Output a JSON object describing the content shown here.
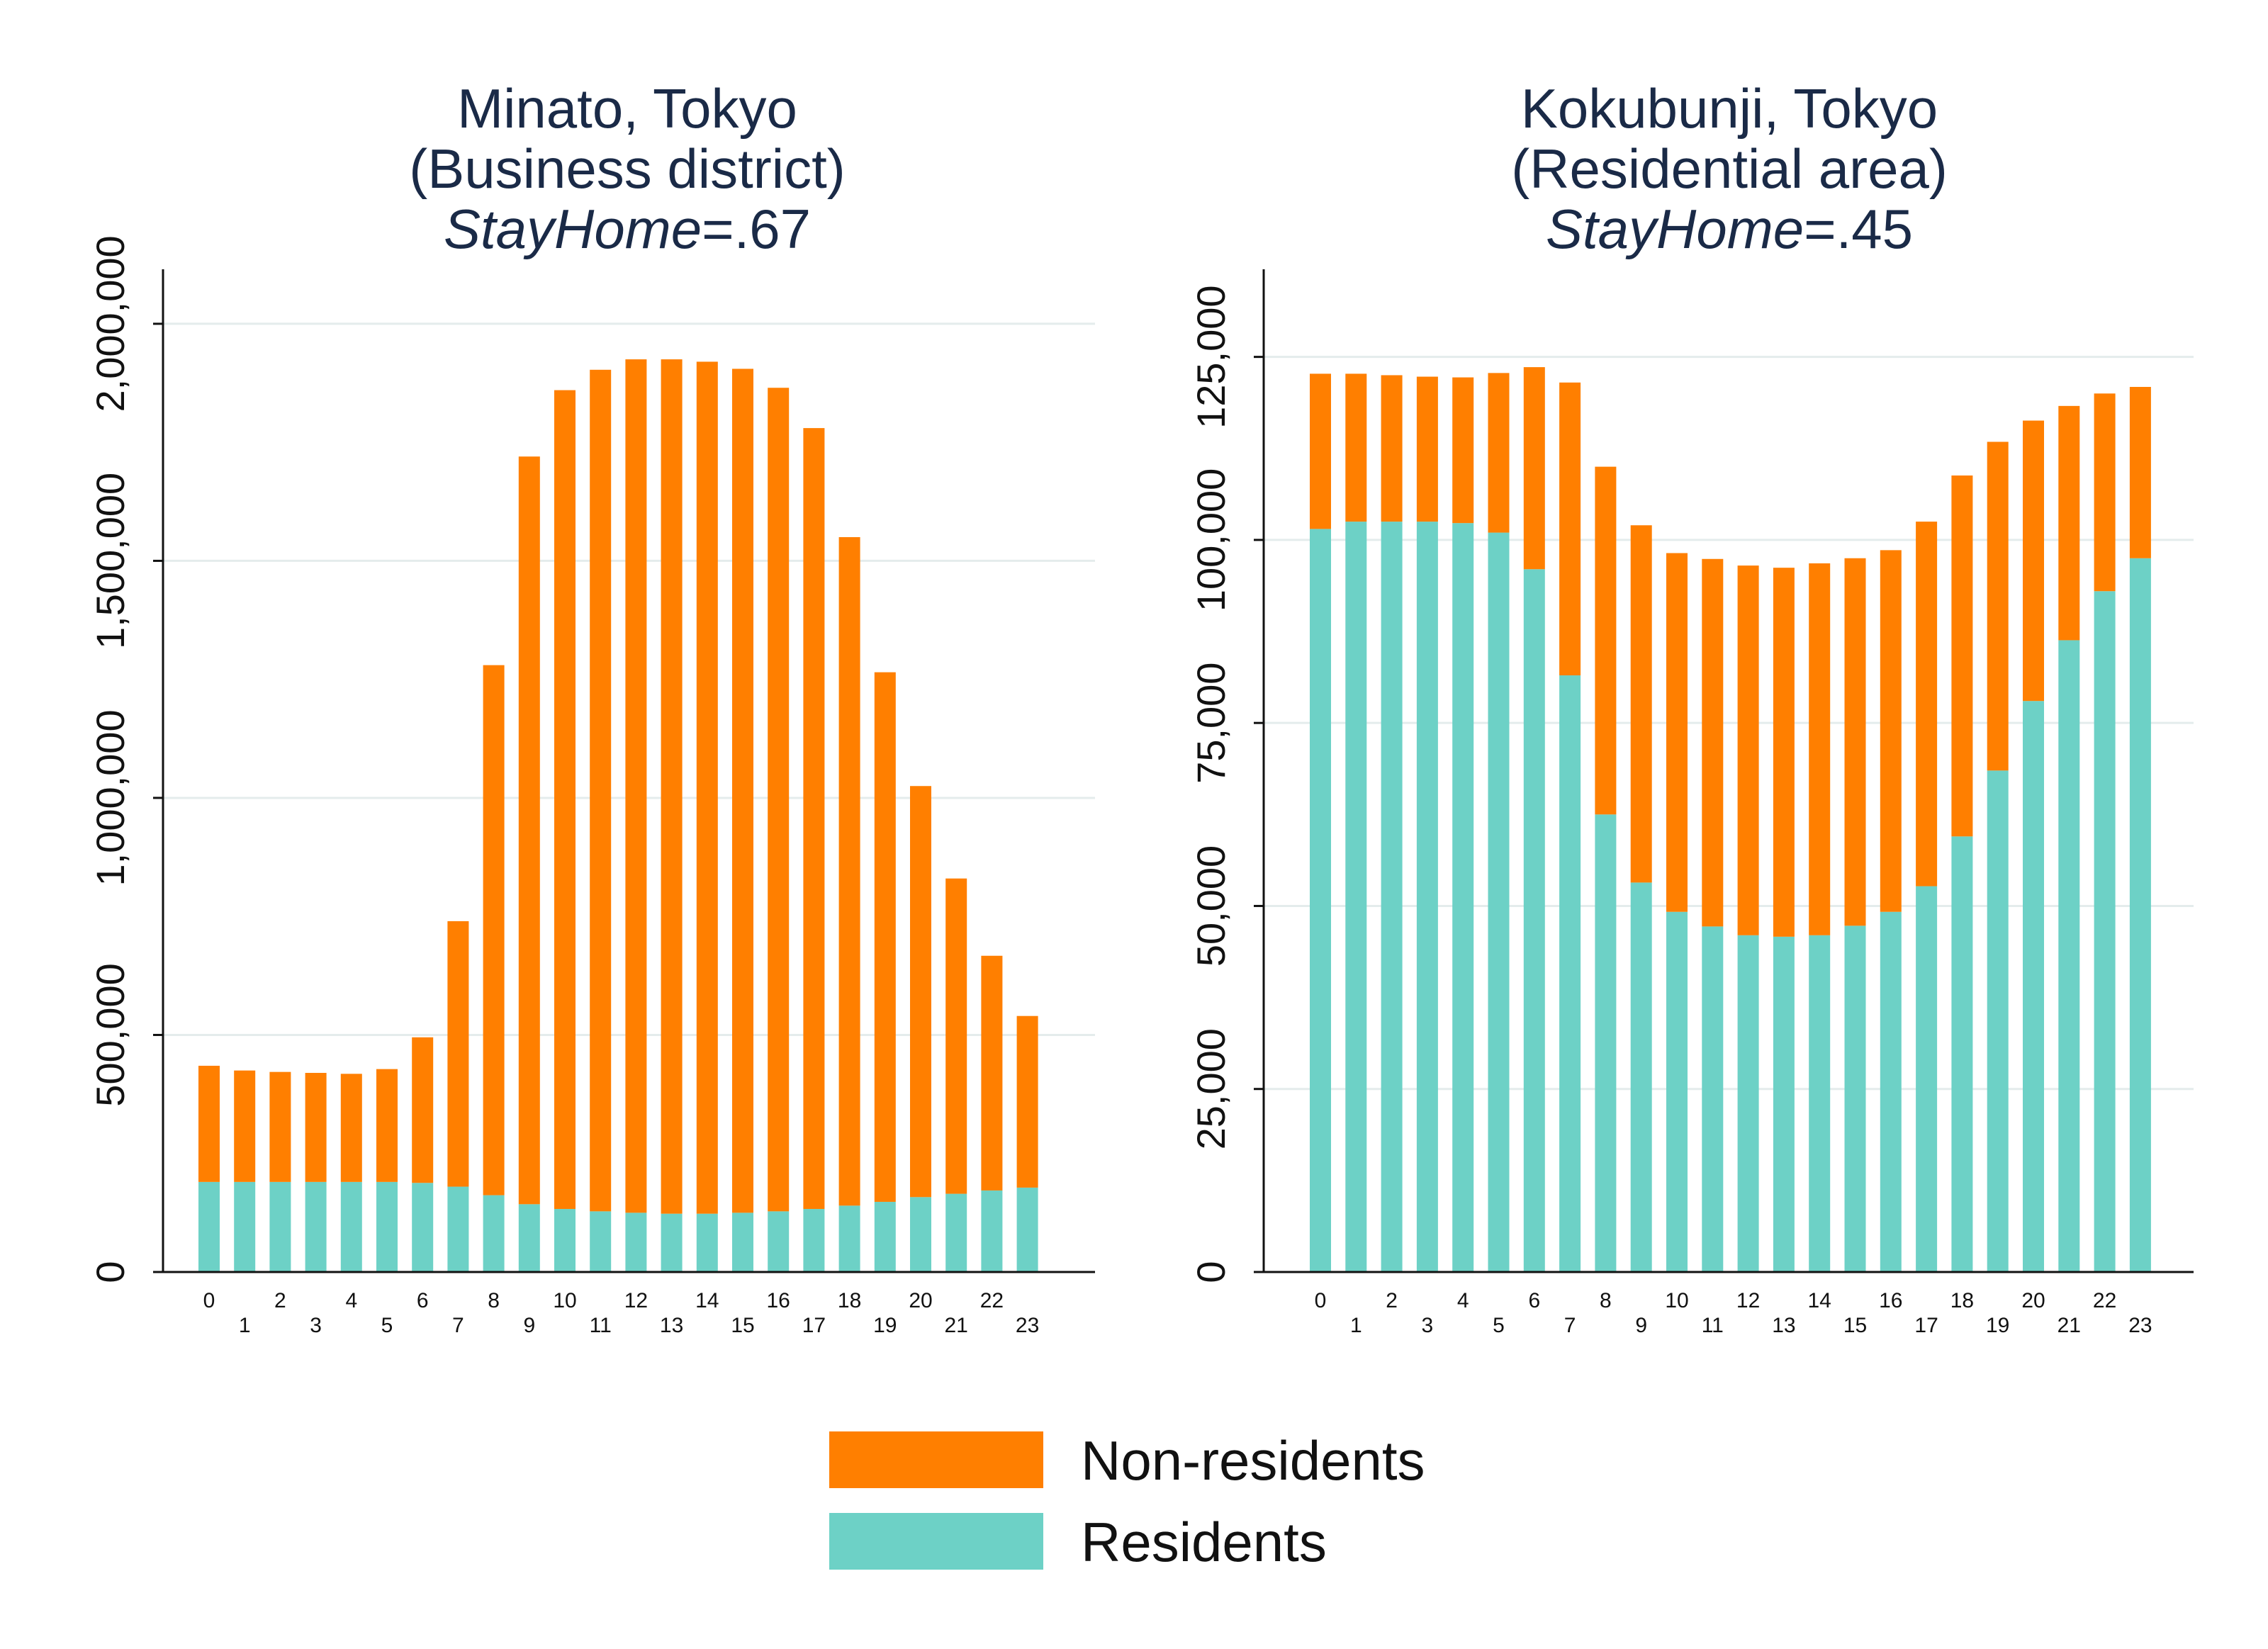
{
  "colors": {
    "nonresidents": "#ff7f00",
    "residents": "#6dd1c6",
    "grid": "#e4ecec",
    "axis": "#111111",
    "title": "#1a2a47"
  },
  "legend": {
    "items": [
      "Non-residents",
      "Residents"
    ]
  },
  "charts": [
    {
      "title_line1": "Minato, Tokyo",
      "title_line2": "(Business district)",
      "title_line3_italic": "StayHome",
      "title_line3_suffix": "=.67",
      "ytick_labels": [
        "0",
        "500,000",
        "1,000,000",
        "1,500,000",
        "2,000,000"
      ]
    },
    {
      "title_line1": "Kokubunji, Tokyo",
      "title_line2": "(Residential area)",
      "title_line3_italic": "StayHome",
      "title_line3_suffix": "=.45",
      "ytick_labels": [
        "0",
        "25,000",
        "50,000",
        "75,000",
        "100,000",
        "125,000"
      ]
    }
  ],
  "chart_data": [
    {
      "type": "bar",
      "stacked": true,
      "title": "Minato, Tokyo (Business district) StayHome=.67",
      "categories": [
        "0",
        "1",
        "2",
        "3",
        "4",
        "5",
        "6",
        "7",
        "8",
        "9",
        "10",
        "11",
        "12",
        "13",
        "14",
        "15",
        "16",
        "17",
        "18",
        "19",
        "20",
        "21",
        "22",
        "23"
      ],
      "series": [
        {
          "name": "Residents",
          "values": [
            190000,
            190000,
            190000,
            190000,
            190000,
            190000,
            188000,
            180000,
            162000,
            143000,
            133000,
            128000,
            125000,
            123000,
            123000,
            125000,
            128000,
            133000,
            140000,
            148000,
            158000,
            165000,
            172000,
            178000
          ]
        },
        {
          "name": "Non-residents",
          "values": [
            245000,
            235000,
            232000,
            230000,
            228000,
            238000,
            307000,
            560000,
            1118000,
            1577000,
            1727000,
            1775000,
            1800000,
            1802000,
            1797000,
            1780000,
            1737000,
            1647000,
            1410000,
            1117000,
            867000,
            665000,
            495000,
            362000
          ]
        }
      ],
      "ylim": [
        0,
        2100000
      ],
      "yticks": [
        0,
        500000,
        1000000,
        1500000,
        2000000
      ],
      "grid": true
    },
    {
      "type": "bar",
      "stacked": true,
      "title": "Kokubunji, Tokyo (Residential area) StayHome=.45",
      "categories": [
        "0",
        "1",
        "2",
        "3",
        "4",
        "5",
        "6",
        "7",
        "8",
        "9",
        "10",
        "11",
        "12",
        "13",
        "14",
        "15",
        "16",
        "17",
        "18",
        "19",
        "20",
        "21",
        "22",
        "23"
      ],
      "series": [
        {
          "name": "Residents",
          "values": [
            101500,
            102500,
            102500,
            102500,
            102300,
            101000,
            96000,
            81500,
            62500,
            53200,
            49200,
            47200,
            46000,
            45800,
            46000,
            47300,
            49200,
            52700,
            59500,
            68500,
            78000,
            86300,
            93000,
            97500
          ]
        },
        {
          "name": "Non-residents",
          "values": [
            21200,
            20200,
            20000,
            19800,
            19900,
            21800,
            27600,
            40000,
            47500,
            48800,
            49000,
            50200,
            50500,
            50400,
            50800,
            50200,
            49400,
            49800,
            49300,
            44900,
            38300,
            32000,
            27000,
            23400
          ]
        }
      ],
      "ylim": [
        0,
        136000
      ],
      "yticks": [
        0,
        25000,
        50000,
        75000,
        100000,
        125000
      ],
      "grid": true
    }
  ]
}
